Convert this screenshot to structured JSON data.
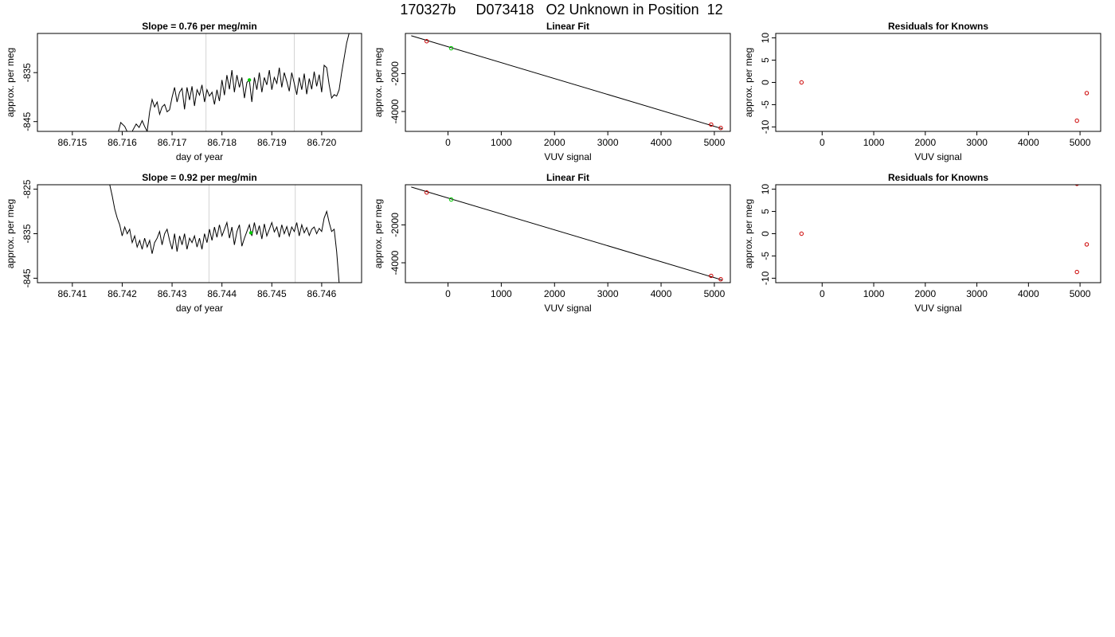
{
  "page": {
    "title": "170327b     D073418   O2 Unknown in Position  12"
  },
  "chart_data": [
    {
      "type": "line",
      "title": "Slope =  0.76  per meg/min",
      "xlabel": "day of year",
      "ylabel": "approx. per meg",
      "xlim": [
        86.7143,
        86.7208
      ],
      "ylim": [
        -847,
        -827
      ],
      "xticks": [
        86.715,
        86.716,
        86.717,
        86.718,
        86.719,
        86.72
      ],
      "xtick_labels": [
        "86.715",
        "86.716",
        "86.717",
        "86.718",
        "86.719",
        "86.720"
      ],
      "yticks": [
        -835,
        -845
      ],
      "ytick_labels": [
        "-835",
        "-845"
      ],
      "vlines": [
        86.71768,
        86.71945
      ],
      "vline_color": "#d3d3d3",
      "line_color": "#000000",
      "marker": {
        "x": 86.71855,
        "y": -836.5,
        "color": "#00cc00"
      },
      "series": [
        {
          "points": [
            [
              86.7159,
              -848
            ],
            [
              86.71597,
              -845.2
            ],
            [
              86.71605,
              -846
            ],
            [
              86.71612,
              -847.5
            ],
            [
              86.71617,
              -848
            ],
            [
              86.71621,
              -846.8
            ],
            [
              86.71628,
              -845.5
            ],
            [
              86.71634,
              -846.2
            ],
            [
              86.7164,
              -844.8
            ],
            [
              86.71645,
              -846
            ],
            [
              86.7165,
              -847
            ],
            [
              86.71655,
              -843
            ],
            [
              86.7166,
              -840.5
            ],
            [
              86.71665,
              -842
            ],
            [
              86.7167,
              -841
            ],
            [
              86.71675,
              -843.5
            ],
            [
              86.7168,
              -842
            ],
            [
              86.71685,
              -841.5
            ],
            [
              86.7169,
              -843
            ],
            [
              86.71695,
              -842.6
            ],
            [
              86.717,
              -840
            ],
            [
              86.71705,
              -838
            ],
            [
              86.7171,
              -841
            ],
            [
              86.71715,
              -839
            ],
            [
              86.7172,
              -838.2
            ],
            [
              86.71725,
              -842.5
            ],
            [
              86.7173,
              -838
            ],
            [
              86.71735,
              -840.6
            ],
            [
              86.7174,
              -837.8
            ],
            [
              86.71745,
              -841.8
            ],
            [
              86.7175,
              -838.5
            ],
            [
              86.71755,
              -839.6
            ],
            [
              86.7176,
              -837.5
            ],
            [
              86.71765,
              -841
            ],
            [
              86.7177,
              -838.5
            ],
            [
              86.71775,
              -839.8
            ],
            [
              86.7178,
              -839
            ],
            [
              86.71785,
              -841.5
            ],
            [
              86.7179,
              -838.5
            ],
            [
              86.71795,
              -840.8
            ],
            [
              86.718,
              -836.5
            ],
            [
              86.71805,
              -839.6
            ],
            [
              86.7181,
              -835.5
            ],
            [
              86.71815,
              -838.4
            ],
            [
              86.7182,
              -834.5
            ],
            [
              86.71825,
              -839
            ],
            [
              86.7183,
              -835.5
            ],
            [
              86.71835,
              -838
            ],
            [
              86.7184,
              -836
            ],
            [
              86.71845,
              -840.2
            ],
            [
              86.7185,
              -837
            ],
            [
              86.71855,
              -836.5
            ],
            [
              86.7186,
              -841
            ],
            [
              86.71865,
              -836
            ],
            [
              86.7187,
              -838.5
            ],
            [
              86.71875,
              -835
            ],
            [
              86.7188,
              -839
            ],
            [
              86.71885,
              -836
            ],
            [
              86.7189,
              -837.5
            ],
            [
              86.71895,
              -834.5
            ],
            [
              86.719,
              -838.5
            ],
            [
              86.71905,
              -836
            ],
            [
              86.7191,
              -837.2
            ],
            [
              86.71915,
              -834
            ],
            [
              86.7192,
              -838
            ],
            [
              86.71925,
              -835
            ],
            [
              86.7193,
              -836.8
            ],
            [
              86.71935,
              -838.8
            ],
            [
              86.7194,
              -835
            ],
            [
              86.71945,
              -837.2
            ],
            [
              86.7195,
              -839.5
            ],
            [
              86.71955,
              -836
            ],
            [
              86.7196,
              -838.5
            ],
            [
              86.71965,
              -835.2
            ],
            [
              86.7197,
              -839.4
            ],
            [
              86.71975,
              -836.2
            ],
            [
              86.7198,
              -838.4
            ],
            [
              86.71985,
              -834.8
            ],
            [
              86.7199,
              -837.8
            ],
            [
              86.71995,
              -835.4
            ],
            [
              86.72,
              -839
            ],
            [
              86.72005,
              -833.5
            ],
            [
              86.7201,
              -834
            ],
            [
              86.72015,
              -837.5
            ],
            [
              86.7202,
              -840.2
            ],
            [
              86.72025,
              -839.5
            ],
            [
              86.7203,
              -839.8
            ],
            [
              86.72035,
              -838.5
            ],
            [
              86.7204,
              -835
            ],
            [
              86.72045,
              -832
            ],
            [
              86.7205,
              -829
            ],
            [
              86.72055,
              -827
            ]
          ]
        }
      ]
    },
    {
      "type": "scatter",
      "title": "Linear Fit",
      "xlabel": "VUV signal",
      "ylabel": "approx. per meg",
      "xlim": [
        -800,
        5300
      ],
      "ylim": [
        -5050,
        120
      ],
      "xticks": [
        0,
        1000,
        2000,
        3000,
        4000,
        5000
      ],
      "xtick_labels": [
        "0",
        "1000",
        "2000",
        "3000",
        "4000",
        "5000"
      ],
      "yticks": [
        -2000,
        -4000
      ],
      "ytick_labels": [
        "-2000",
        "-4000"
      ],
      "fit_line": [
        [
          -690,
          0
        ],
        [
          5150,
          -4910
        ]
      ],
      "series": [
        {
          "color": "#cc0000",
          "points": [
            [
              -400,
              -290
            ],
            [
              4940,
              -4690
            ],
            [
              5120,
              -4870
            ]
          ]
        },
        {
          "color": "#00cc00",
          "points": [
            [
              60,
              -660
            ]
          ]
        }
      ]
    },
    {
      "type": "scatter",
      "title": "Residuals for Knowns",
      "xlabel": "VUV signal",
      "ylabel": "approx. per meg",
      "xlim": [
        -900,
        5400
      ],
      "ylim": [
        -11,
        11
      ],
      "xticks": [
        0,
        1000,
        2000,
        3000,
        4000,
        5000
      ],
      "xtick_labels": [
        "0",
        "1000",
        "2000",
        "3000",
        "4000",
        "5000"
      ],
      "yticks": [
        10,
        5,
        0,
        -5,
        -10
      ],
      "ytick_labels": [
        "10",
        "5",
        "0",
        "-5",
        "-10"
      ],
      "series": [
        {
          "color": "#cc0000",
          "points": [
            [
              -400,
              0
            ],
            [
              4940,
              -8.6
            ],
            [
              5130,
              -2.4
            ]
          ]
        }
      ]
    },
    {
      "type": "line",
      "title": "Slope =  0.92  per meg/min",
      "xlabel": "day of year",
      "ylabel": "approx. per meg",
      "xlim": [
        86.7403,
        86.7468
      ],
      "ylim": [
        -846,
        -824
      ],
      "xticks": [
        86.741,
        86.742,
        86.743,
        86.744,
        86.745,
        86.746
      ],
      "xtick_labels": [
        "86.741",
        "86.742",
        "86.743",
        "86.744",
        "86.745",
        "86.746"
      ],
      "yticks": [
        -825,
        -835,
        -845
      ],
      "ytick_labels": [
        "-825",
        "-835",
        "-845"
      ],
      "vlines": [
        86.74374,
        86.74547
      ],
      "vline_color": "#d3d3d3",
      "line_color": "#000000",
      "marker": {
        "x": 86.74458,
        "y": -834.8,
        "color": "#00cc00"
      },
      "series": [
        {
          "points": [
            [
              86.74175,
              -824
            ],
            [
              86.7418,
              -826.5
            ],
            [
              86.74185,
              -829.5
            ],
            [
              86.7419,
              -831.5
            ],
            [
              86.74195,
              -833
            ],
            [
              86.742,
              -835.5
            ],
            [
              86.74205,
              -833.5
            ],
            [
              86.7421,
              -835
            ],
            [
              86.74215,
              -834
            ],
            [
              86.7422,
              -837
            ],
            [
              86.74225,
              -835.5
            ],
            [
              86.7423,
              -838
            ],
            [
              86.74235,
              -836.5
            ],
            [
              86.7424,
              -838.5
            ],
            [
              86.74245,
              -836
            ],
            [
              86.7425,
              -838
            ],
            [
              86.74255,
              -836.5
            ],
            [
              86.7426,
              -839.5
            ],
            [
              86.74265,
              -837
            ],
            [
              86.7427,
              -836
            ],
            [
              86.74275,
              -834.5
            ],
            [
              86.7428,
              -837.5
            ],
            [
              86.74285,
              -835
            ],
            [
              86.7429,
              -834
            ],
            [
              86.74295,
              -836.5
            ],
            [
              86.743,
              -838.5
            ],
            [
              86.74305,
              -835
            ],
            [
              86.7431,
              -839
            ],
            [
              86.74315,
              -835.5
            ],
            [
              86.7432,
              -837.5
            ],
            [
              86.74325,
              -835
            ],
            [
              86.7433,
              -838.5
            ],
            [
              86.74335,
              -836
            ],
            [
              86.7434,
              -837
            ],
            [
              86.74345,
              -835.5
            ],
            [
              86.7435,
              -838
            ],
            [
              86.74355,
              -836
            ],
            [
              86.7436,
              -838.5
            ],
            [
              86.74365,
              -835
            ],
            [
              86.7437,
              -837
            ],
            [
              86.74375,
              -834
            ],
            [
              86.7438,
              -836.5
            ],
            [
              86.74385,
              -833.5
            ],
            [
              86.7439,
              -835.8
            ],
            [
              86.74395,
              -833
            ],
            [
              86.744,
              -835.5
            ],
            [
              86.74405,
              -834
            ],
            [
              86.7441,
              -832.5
            ],
            [
              86.74415,
              -836
            ],
            [
              86.7442,
              -833.5
            ],
            [
              86.74425,
              -837.5
            ],
            [
              86.7443,
              -834.5
            ],
            [
              86.74435,
              -833
            ],
            [
              86.7444,
              -837.8
            ],
            [
              86.74445,
              -836
            ],
            [
              86.7445,
              -834.5
            ],
            [
              86.74455,
              -833
            ],
            [
              86.7446,
              -835.5
            ],
            [
              86.74465,
              -832.5
            ],
            [
              86.7447,
              -835.2
            ],
            [
              86.74475,
              -833.2
            ],
            [
              86.7448,
              -836.2
            ],
            [
              86.74485,
              -832.8
            ],
            [
              86.7449,
              -835.5
            ],
            [
              86.74495,
              -834
            ],
            [
              86.745,
              -832.5
            ],
            [
              86.74505,
              -834.6
            ],
            [
              86.7451,
              -833.5
            ],
            [
              86.74515,
              -835.8
            ],
            [
              86.7452,
              -833
            ],
            [
              86.74525,
              -835
            ],
            [
              86.7453,
              -833.4
            ],
            [
              86.74535,
              -835.5
            ],
            [
              86.7454,
              -833.5
            ],
            [
              86.74545,
              -834.5
            ],
            [
              86.7455,
              -832.5
            ],
            [
              86.74555,
              -835.5
            ],
            [
              86.7456,
              -833
            ],
            [
              86.74565,
              -834.8
            ],
            [
              86.7457,
              -833.6
            ],
            [
              86.74575,
              -835.4
            ],
            [
              86.7458,
              -834
            ],
            [
              86.74585,
              -833.5
            ],
            [
              86.7459,
              -835
            ],
            [
              86.74595,
              -833.8
            ],
            [
              86.746,
              -834.5
            ],
            [
              86.74605,
              -831.5
            ],
            [
              86.7461,
              -830
            ],
            [
              86.74615,
              -832.5
            ],
            [
              86.7462,
              -834.5
            ],
            [
              86.74625,
              -834
            ],
            [
              86.7463,
              -839
            ],
            [
              86.74635,
              -846
            ]
          ]
        }
      ]
    },
    {
      "type": "scatter",
      "title": "Linear Fit",
      "xlabel": "VUV signal",
      "ylabel": "approx. per meg",
      "xlim": [
        -800,
        5300
      ],
      "ylim": [
        -5050,
        120
      ],
      "xticks": [
        0,
        1000,
        2000,
        3000,
        4000,
        5000
      ],
      "xtick_labels": [
        "0",
        "1000",
        "2000",
        "3000",
        "4000",
        "5000"
      ],
      "yticks": [
        -2000,
        -4000
      ],
      "ytick_labels": [
        "-2000",
        "-4000"
      ],
      "fit_line": [
        [
          -690,
          0
        ],
        [
          5150,
          -4910
        ]
      ],
      "series": [
        {
          "color": "#cc0000",
          "points": [
            [
              -400,
              -290
            ],
            [
              4940,
              -4690
            ],
            [
              5120,
              -4870
            ]
          ]
        },
        {
          "color": "#00cc00",
          "points": [
            [
              60,
              -660
            ]
          ]
        }
      ]
    },
    {
      "type": "scatter",
      "title": "Residuals for Knowns",
      "xlabel": "VUV signal",
      "ylabel": "approx. per meg",
      "xlim": [
        -900,
        5400
      ],
      "ylim": [
        -11,
        11
      ],
      "xticks": [
        0,
        1000,
        2000,
        3000,
        4000,
        5000
      ],
      "xtick_labels": [
        "0",
        "1000",
        "2000",
        "3000",
        "4000",
        "5000"
      ],
      "yticks": [
        10,
        5,
        0,
        -5,
        -10
      ],
      "ytick_labels": [
        "10",
        "5",
        "0",
        "-5",
        "-10"
      ],
      "series": [
        {
          "color": "#cc0000",
          "points": [
            [
              -400,
              0
            ],
            [
              4940,
              -8.6
            ],
            [
              5130,
              -2.4
            ],
            [
              4940,
              11.2
            ]
          ]
        }
      ]
    }
  ]
}
